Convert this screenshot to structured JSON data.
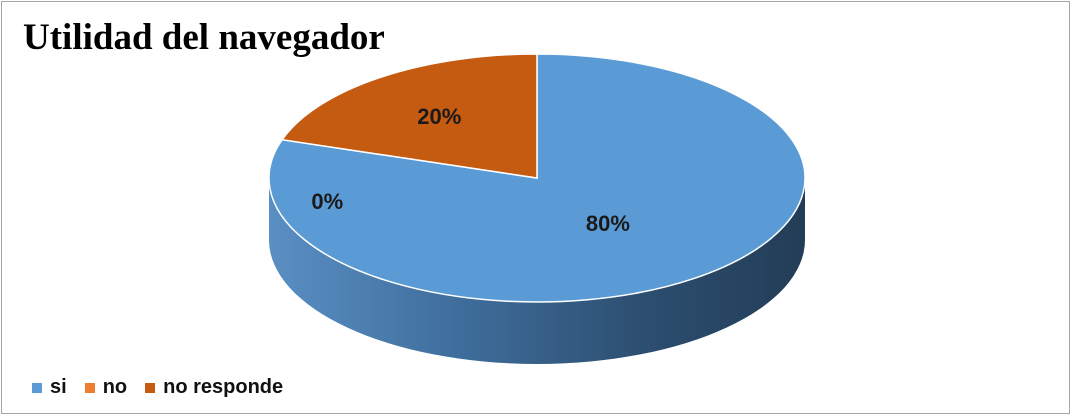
{
  "chart_data": {
    "type": "pie",
    "title": "Utilidad del navegador",
    "style": "3d",
    "categories": [
      "si",
      "no",
      "no responde"
    ],
    "values": [
      80,
      0,
      20
    ],
    "data_labels": [
      "80%",
      "0%",
      "20%"
    ],
    "colors": [
      "#5b9bd5",
      "#ed7d31",
      "#c55a11"
    ],
    "legend_position": "bottom-left"
  }
}
